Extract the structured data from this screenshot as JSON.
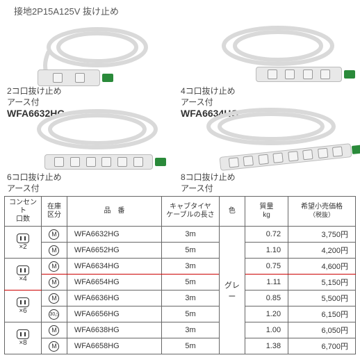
{
  "header": "接地2P15A125V 抜け止め",
  "products": [
    {
      "n": 2,
      "t1": "2コ口抜け止め",
      "t2": "アース付",
      "model": "WFA6632HG"
    },
    {
      "n": 4,
      "t1": "4コ口抜け止め",
      "t2": "アース付",
      "model": "WFA6634HG"
    },
    {
      "n": 6,
      "t1": "6コ口抜け止め",
      "t2": "アース付",
      "model": "WFA6636HG"
    },
    {
      "n": 8,
      "t1": "8コ口抜け止め",
      "t2": "アース付",
      "model": "WFA6638HG"
    }
  ],
  "table": {
    "headers": {
      "c1": "コンセント\n口数",
      "c2": "在庫\n区分",
      "c3": "品　番",
      "c4": "キャブタイヤ\nケーブルの長さ",
      "c5": "色",
      "c6": "質量\nkg",
      "c7": "希望小売価格",
      "c7sub": "（税抜）"
    },
    "color": "グレー",
    "groups": [
      {
        "count": "×2",
        "rows": [
          {
            "stock": "M",
            "model": "WFA6632HG",
            "len": "3m",
            "mass": "0.72",
            "price": "3,750円"
          },
          {
            "stock": "M",
            "model": "WFA6652HG",
            "len": "5m",
            "mass": "1.10",
            "price": "4,200円"
          }
        ]
      },
      {
        "count": "×4",
        "rows": [
          {
            "stock": "M",
            "model": "WFA6634HG",
            "len": "3m",
            "mass": "0.75",
            "price": "4,600円",
            "red": true
          },
          {
            "stock": "M",
            "model": "WFA6654HG",
            "len": "5m",
            "mass": "1.11",
            "price": "5,150円"
          }
        ]
      },
      {
        "count": "×6",
        "rows": [
          {
            "stock": "M",
            "model": "WFA6636HG",
            "len": "3m",
            "mass": "0.85",
            "price": "5,500円"
          },
          {
            "stock": "30",
            "model": "WFA6656HG",
            "len": "5m",
            "mass": "1.20",
            "price": "6,150円"
          }
        ]
      },
      {
        "count": "×8",
        "rows": [
          {
            "stock": "M",
            "model": "WFA6638HG",
            "len": "3m",
            "mass": "1.00",
            "price": "6,050円"
          },
          {
            "stock": "M",
            "model": "WFA6658HG",
            "len": "5m",
            "mass": "1.38",
            "price": "6,700円"
          }
        ]
      }
    ]
  },
  "style": {
    "cable_color": "#d9d9d9",
    "strip_bg": "#e8e8e8",
    "plug_color": "#2a8a3a",
    "border": "#666666",
    "redline": "#cc0000",
    "text": "#333333"
  }
}
